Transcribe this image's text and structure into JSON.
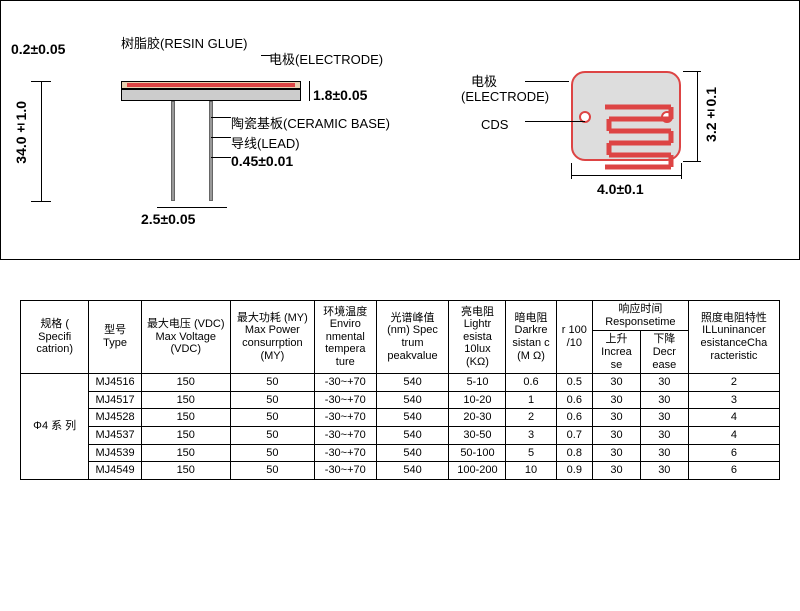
{
  "diagram": {
    "side": {
      "resin_label": "树脂胶(RESIN GLUE)",
      "electrode_label": "电极(ELECTRODE)",
      "ceramic_label": "陶瓷基板(CERAMIC BASE)",
      "lead_label": "导线(LEAD)",
      "dim_top_thickness": "0.2±0.05",
      "dim_body_thickness": "1.8±0.05",
      "dim_lead_length": "34.0±1.0",
      "dim_lead_spacing": "2.5±0.05",
      "dim_lead_dia": "0.45±0.01"
    },
    "top": {
      "electrode_label": "电极",
      "electrode_en": "(ELECTRODE)",
      "cds_label": "CDS",
      "dim_width": "4.0±0.1",
      "dim_height": "3.2±0.1"
    },
    "colors": {
      "outline": "#000000",
      "cds": "#d44",
      "ceramic": "#cccccc",
      "resin": "#e8d0b0",
      "lead": "#999999"
    }
  },
  "table": {
    "headers": {
      "spec": "规格 ( Specifi catrion)",
      "type": "型号 Type",
      "vdc": "最大电压 (VDC) Max Voltage (VDC)",
      "power": "最大功耗 (MY) Max Power consurrption (MY)",
      "temp": "环境温度 Enviro nmental tempera ture",
      "peak": "光谱峰值 (nm) Spec trum peakvalue",
      "lightr": "亮电阻 Lightr esista 10lux (KΩ)",
      "darkr": "暗电阻 Darkre sistan c (M Ω)",
      "r100": "r 100 /10",
      "resp": "响应时间 Responsetime",
      "inc": "上升 Increa se",
      "dec": "下降 Decr ease",
      "ill": "照度电阻特性 ILLuninancer esistanceCha racteristic"
    },
    "series_label": "Φ4 系 列",
    "rows": [
      {
        "type": "MJ4516",
        "vdc": "150",
        "power": "50",
        "temp": "-30~+70",
        "peak": "540",
        "lightr": "5-10",
        "darkr": "0.6",
        "r100": "0.5",
        "inc": "30",
        "dec": "30",
        "ill": "2"
      },
      {
        "type": "MJ4517",
        "vdc": "150",
        "power": "50",
        "temp": "-30~+70",
        "peak": "540",
        "lightr": "10-20",
        "darkr": "1",
        "r100": "0.6",
        "inc": "30",
        "dec": "30",
        "ill": "3"
      },
      {
        "type": "MJ4528",
        "vdc": "150",
        "power": "50",
        "temp": "-30~+70",
        "peak": "540",
        "lightr": "20-30",
        "darkr": "2",
        "r100": "0.6",
        "inc": "30",
        "dec": "30",
        "ill": "4"
      },
      {
        "type": "MJ4537",
        "vdc": "150",
        "power": "50",
        "temp": "-30~+70",
        "peak": "540",
        "lightr": "30-50",
        "darkr": "3",
        "r100": "0.7",
        "inc": "30",
        "dec": "30",
        "ill": "4"
      },
      {
        "type": "MJ4539",
        "vdc": "150",
        "power": "50",
        "temp": "-30~+70",
        "peak": "540",
        "lightr": "50-100",
        "darkr": "5",
        "r100": "0.8",
        "inc": "30",
        "dec": "30",
        "ill": "6"
      },
      {
        "type": "MJ4549",
        "vdc": "150",
        "power": "50",
        "temp": "-30~+70",
        "peak": "540",
        "lightr": "100-200",
        "darkr": "10",
        "r100": "0.9",
        "inc": "30",
        "dec": "30",
        "ill": "6"
      }
    ]
  }
}
